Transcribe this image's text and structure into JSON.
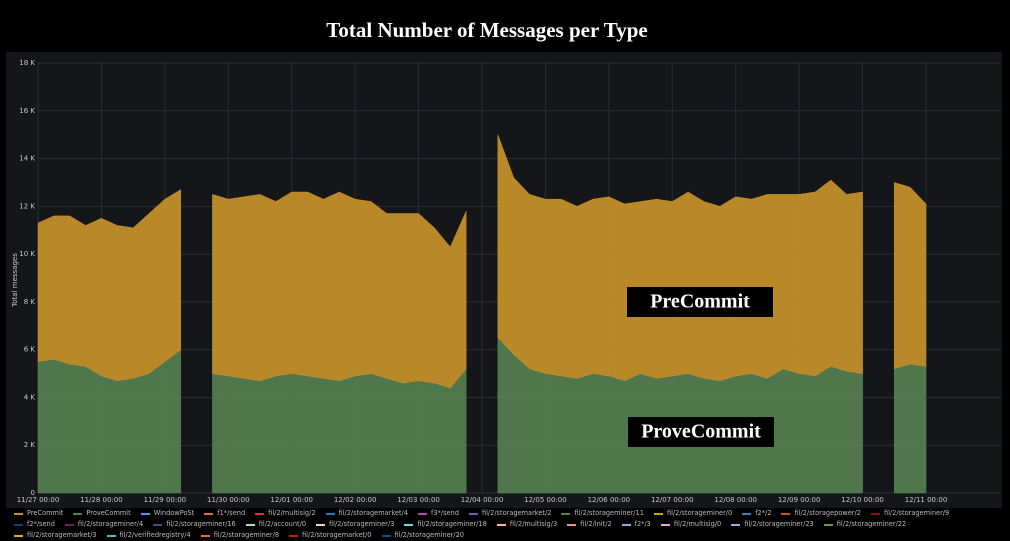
{
  "chart_data": {
    "type": "area",
    "stacked": true,
    "title": "Total Number of Messages per Type",
    "ylabel": "Total messages",
    "x": [
      "11/27 00:00",
      null,
      null,
      null,
      "11/28 00:00",
      null,
      null,
      null,
      "11/29 00:00",
      null,
      null,
      null,
      "11/30 00:00",
      null,
      null,
      null,
      "12/01 00:00",
      null,
      null,
      null,
      "12/02 00:00",
      null,
      null,
      null,
      "12/03 00:00",
      null,
      null,
      null,
      "12/04 00:00",
      null,
      null,
      null,
      "12/05 00:00",
      null,
      null,
      null,
      "12/06 00:00",
      null,
      null,
      null,
      "12/07 00:00",
      null,
      null,
      null,
      "12/08 00:00",
      null,
      null,
      null,
      "12/09 00:00",
      null,
      null,
      null,
      "12/10 00:00",
      null,
      null,
      null,
      "12/11 00:00"
    ],
    "series": [
      {
        "name": "PreCommit",
        "color": "#c8922a",
        "values": [
          5800,
          6000,
          6200,
          5900,
          6600,
          6500,
          6300,
          6700,
          6800,
          6700,
          null,
          7500,
          7400,
          7600,
          7800,
          7300,
          7600,
          7700,
          7500,
          7900,
          7400,
          7200,
          6900,
          7100,
          7000,
          6500,
          5900,
          6600,
          null,
          8500,
          7400,
          7300,
          7300,
          7400,
          7200,
          7300,
          7500,
          7400,
          7200,
          7500,
          7300,
          7600,
          7400,
          7300,
          7500,
          7300,
          7700,
          7300,
          7500,
          7700,
          7800,
          7400,
          7600,
          null,
          7800,
          7400,
          6800
        ]
      },
      {
        "name": "ProveCommit",
        "color": "#55804f",
        "values": [
          5500,
          5600,
          5400,
          5300,
          4900,
          4700,
          4800,
          5000,
          5500,
          6000,
          null,
          5000,
          4900,
          4800,
          4700,
          4900,
          5000,
          4900,
          4800,
          4700,
          4900,
          5000,
          4800,
          4600,
          4700,
          4600,
          4400,
          5200,
          null,
          6500,
          5800,
          5200,
          5000,
          4900,
          4800,
          5000,
          4900,
          4700,
          5000,
          4800,
          4900,
          5000,
          4800,
          4700,
          4900,
          5000,
          4800,
          5200,
          5000,
          4900,
          5300,
          5100,
          5000,
          null,
          5200,
          5400,
          5300
        ]
      }
    ],
    "other_series": [
      {
        "name": "WindowPoSt",
        "color": "#5794f2"
      },
      {
        "name": "f1*/send",
        "color": "#e0752d"
      },
      {
        "name": "fil/2/multisig/2",
        "color": "#e02f44"
      },
      {
        "name": "fil/2/storagemarket/4",
        "color": "#1f78c1"
      },
      {
        "name": "f3*/send",
        "color": "#ba43a9"
      },
      {
        "name": "fil/2/storagemarket/2",
        "color": "#705da0"
      },
      {
        "name": "fil/2/storageminer/11",
        "color": "#508642"
      },
      {
        "name": "fil/2/storageminer/0",
        "color": "#cca300"
      },
      {
        "name": "f2*/2",
        "color": "#447ebc"
      },
      {
        "name": "fil/2/storagepower/2",
        "color": "#c15c17"
      },
      {
        "name": "fil/2/storageminer/9",
        "color": "#890f02"
      },
      {
        "name": "f2*/send",
        "color": "#0a437c"
      },
      {
        "name": "fil/2/storageminer/4",
        "color": "#6d1f62"
      },
      {
        "name": "fil/2/storageminer/16",
        "color": "#584477"
      },
      {
        "name": "fil/2/account/0",
        "color": "#b7dbab"
      },
      {
        "name": "fil/2/storageminer/3",
        "color": "#f4d598"
      },
      {
        "name": "fil/2/storageminer/18",
        "color": "#70dbed"
      },
      {
        "name": "fil/2/multisig/3",
        "color": "#f9ba8f"
      },
      {
        "name": "fil/2/init/2",
        "color": "#f29191"
      },
      {
        "name": "f2*/3",
        "color": "#82b5d8"
      },
      {
        "name": "fil/2/multisig/0",
        "color": "#e5a8e2"
      },
      {
        "name": "fil/2/storageminer/23",
        "color": "#aea2e0"
      },
      {
        "name": "fil/2/storageminer/22",
        "color": "#629e51"
      },
      {
        "name": "fil/2/storagemarket/3",
        "color": "#e5ac0e"
      },
      {
        "name": "fil/2/verifiedregistry/4",
        "color": "#64b0c8"
      },
      {
        "name": "fil/2/storageminer/8",
        "color": "#e0752d"
      },
      {
        "name": "fil/2/storagemarket/0",
        "color": "#bf1b00"
      },
      {
        "name": "fil/2/storageminer/20",
        "color": "#0a50a1"
      }
    ],
    "ylim": [
      0,
      18000
    ],
    "yticks": [
      0,
      {
        "value": 2000,
        "label": "2 K"
      },
      {
        "value": 4000,
        "label": "4 K"
      },
      {
        "value": 6000,
        "label": "6 K"
      },
      {
        "value": 8000,
        "label": "8 K"
      },
      {
        "value": 10000,
        "label": "10 K"
      },
      {
        "value": 12000,
        "label": "12 K"
      },
      {
        "value": 14000,
        "label": "14 K"
      },
      {
        "value": 16000,
        "label": "16 K"
      },
      {
        "value": 18000,
        "label": "18 K"
      }
    ],
    "grid": true,
    "annotations": [
      {
        "text": "PreCommit"
      },
      {
        "text": "ProveCommit"
      }
    ]
  }
}
